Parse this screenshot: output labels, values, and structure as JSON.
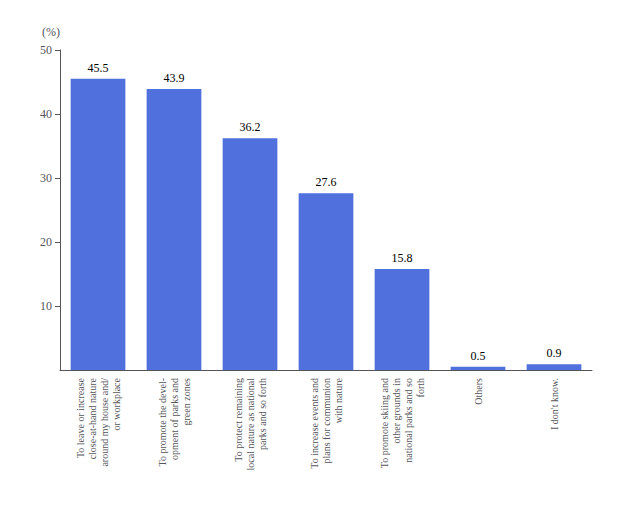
{
  "chart_data": {
    "type": "bar",
    "ylabel": "(%)",
    "categories": [
      "To leave or increase\nclose-at-hand nature\naround my house and/\nor workplace",
      "To promote the devel-\nopment of parks and\ngreen zones",
      "To protect remaining\nlocal nature as national\nparks and so forth",
      "To increase events and\nplans for communion\nwith nature",
      "To promote skiing and\nother grounds in\nnational parks and so\nforth",
      "Others",
      "I don't know."
    ],
    "values": [
      45.5,
      43.9,
      36.2,
      27.6,
      15.8,
      0.5,
      0.9
    ],
    "ylim": [
      0,
      50
    ],
    "yticks": [
      10,
      20,
      30,
      40,
      50
    ],
    "data_labels": true,
    "grid": false
  }
}
